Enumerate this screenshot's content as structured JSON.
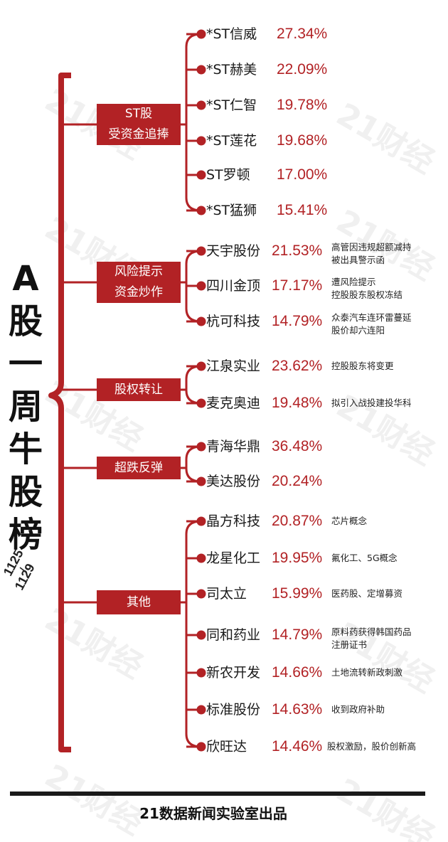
{
  "title_chars": [
    "A",
    "股",
    "一",
    "周",
    "牛",
    "股",
    "榜"
  ],
  "date_top": "1125",
  "date_bottom": "1129",
  "watermark": "21财经",
  "accent_color": "#b22225",
  "categories": [
    {
      "label_lines": [
        "ST股",
        "受资金追捧"
      ],
      "items": [
        {
          "name": "*ST信威",
          "pct": "27.34%",
          "note": []
        },
        {
          "name": "*ST赫美",
          "pct": "22.09%",
          "note": []
        },
        {
          "name": "*ST仁智",
          "pct": "19.78%",
          "note": []
        },
        {
          "name": "*ST莲花",
          "pct": "19.68%",
          "note": []
        },
        {
          "name": "ST罗顿",
          "pct": "17.00%",
          "note": []
        },
        {
          "name": "*ST猛狮",
          "pct": "15.41%",
          "note": []
        }
      ]
    },
    {
      "label_lines": [
        "风险提示",
        "资金炒作"
      ],
      "items": [
        {
          "name": "天宇股份",
          "pct": "21.53%",
          "note": [
            "高管因违规超额减持",
            "被出具警示函"
          ]
        },
        {
          "name": "四川金顶",
          "pct": "17.17%",
          "note": [
            "遭风险提示",
            "控股股东股权冻结"
          ]
        },
        {
          "name": "杭可科技",
          "pct": "14.79%",
          "note": [
            "众泰汽车连环雷蔓延",
            "股价却六连阳"
          ]
        }
      ]
    },
    {
      "label_lines": [
        "股权转让"
      ],
      "items": [
        {
          "name": "江泉实业",
          "pct": "23.62%",
          "note": [
            "控股股东将变更"
          ]
        },
        {
          "name": "麦克奥迪",
          "pct": "19.48%",
          "note": [
            "拟引入战投建投华科"
          ]
        }
      ]
    },
    {
      "label_lines": [
        "超跌反弹"
      ],
      "items": [
        {
          "name": "青海华鼎",
          "pct": "36.48%",
          "note": []
        },
        {
          "name": "美达股份",
          "pct": "20.24%",
          "note": []
        }
      ]
    },
    {
      "label_lines": [
        "其他"
      ],
      "items": [
        {
          "name": "晶方科技",
          "pct": "20.87%",
          "note": [
            "芯片概念"
          ]
        },
        {
          "name": "龙星化工",
          "pct": "19.95%",
          "note": [
            "氟化工、5G概念"
          ]
        },
        {
          "name": "司太立",
          "pct": "15.99%",
          "note": [
            "医药股、定增募资"
          ]
        },
        {
          "name": "同和药业",
          "pct": "14.79%",
          "note": [
            "原料药获得韩国药品",
            "注册证书"
          ]
        },
        {
          "name": "新农开发",
          "pct": "14.66%",
          "note": [
            "土地流转新政刺激"
          ]
        },
        {
          "name": "标准股份",
          "pct": "14.63%",
          "note": [
            "收到政府补助"
          ]
        },
        {
          "name": "欣旺达",
          "pct": "14.46%",
          "note": [
            "股权激励，股价创新高"
          ]
        }
      ]
    }
  ],
  "footer": "21数据新闻实验室出品"
}
